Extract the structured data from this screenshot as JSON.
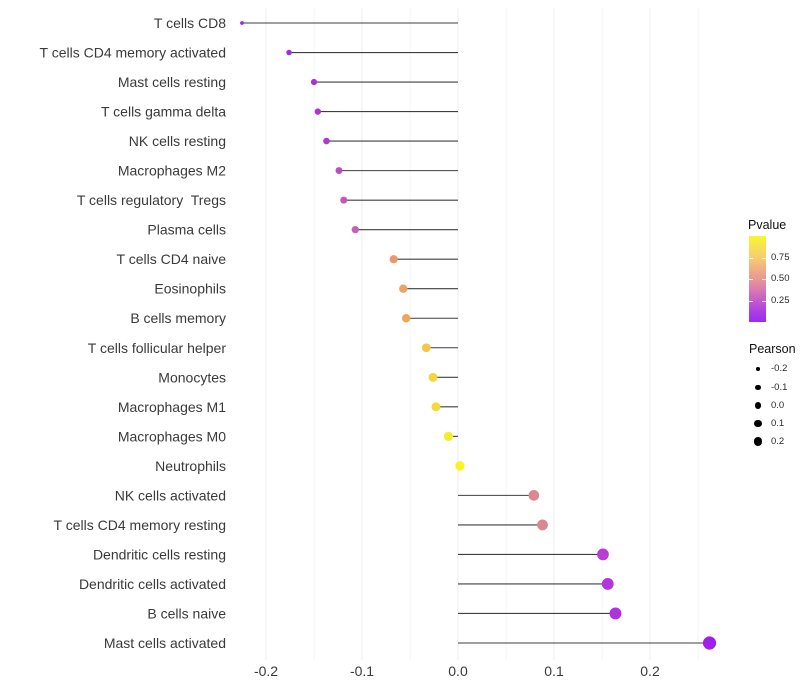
{
  "chart_data": {
    "type": "scatter",
    "subtype": "lollipop",
    "title": "",
    "xlabel": "",
    "ylabel": "",
    "x_axis": {
      "tick_values": [
        -0.2,
        -0.1,
        0.0,
        0.1,
        0.2
      ],
      "tick_labels": [
        "-0.2",
        "-0.1",
        "0.0",
        "0.1",
        "0.2"
      ],
      "minor_grid_values": [
        -0.15,
        -0.05,
        0.05,
        0.15,
        0.25
      ],
      "xlim": [
        -0.25,
        0.287
      ],
      "grid": "vertical major and minor, no horizontal"
    },
    "rows": [
      {
        "label": "T cells CD8",
        "pearson": -0.225,
        "pvalue": 0.05,
        "color": "#9729f0"
      },
      {
        "label": "T cells CD4 memory activated",
        "pearson": -0.176,
        "pvalue": 0.1,
        "color": "#a42ae1"
      },
      {
        "label": "Mast cells resting",
        "pearson": -0.15,
        "pvalue": 0.13,
        "color": "#aa30d9"
      },
      {
        "label": "T cells gamma delta",
        "pearson": -0.146,
        "pvalue": 0.14,
        "color": "#ac33d4"
      },
      {
        "label": "NK cells resting",
        "pearson": -0.137,
        "pvalue": 0.17,
        "color": "#b23ac9"
      },
      {
        "label": "Macrophages M2",
        "pearson": -0.124,
        "pvalue": 0.22,
        "color": "#bf4cc3"
      },
      {
        "label": "T cells regulatory  Tregs",
        "pearson": -0.119,
        "pvalue": 0.25,
        "color": "#c555c0"
      },
      {
        "label": "Plasma cells",
        "pearson": -0.107,
        "pvalue": 0.27,
        "color": "#c85fbb"
      },
      {
        "label": "T cells CD4 naive",
        "pearson": -0.067,
        "pvalue": 0.55,
        "color": "#e9976f"
      },
      {
        "label": "Eosinophils",
        "pearson": -0.057,
        "pvalue": 0.6,
        "color": "#eda25f"
      },
      {
        "label": "B cells memory",
        "pearson": -0.054,
        "pvalue": 0.62,
        "color": "#eea65b"
      },
      {
        "label": "T cells follicular helper",
        "pearson": -0.033,
        "pvalue": 0.74,
        "color": "#f3c748"
      },
      {
        "label": "Monocytes",
        "pearson": -0.026,
        "pvalue": 0.78,
        "color": "#f5d43c"
      },
      {
        "label": "Macrophages M1",
        "pearson": -0.023,
        "pvalue": 0.8,
        "color": "#f6d839"
      },
      {
        "label": "Macrophages M0",
        "pearson": -0.01,
        "pvalue": 0.9,
        "color": "#f8eb2b"
      },
      {
        "label": "Neutrophils",
        "pearson": 0.002,
        "pvalue": 0.95,
        "color": "#fbf31f"
      },
      {
        "label": "NK cells activated",
        "pearson": 0.079,
        "pvalue": 0.46,
        "color": "#dd8793"
      },
      {
        "label": "T cells CD4 memory resting",
        "pearson": 0.088,
        "pvalue": 0.46,
        "color": "#dc8694"
      },
      {
        "label": "Dendritic cells resting",
        "pearson": 0.151,
        "pvalue": 0.18,
        "color": "#b93cd5"
      },
      {
        "label": "Dendritic cells activated",
        "pearson": 0.156,
        "pvalue": 0.15,
        "color": "#b436da"
      },
      {
        "label": "B cells naive",
        "pearson": 0.164,
        "pvalue": 0.13,
        "color": "#b032de"
      },
      {
        "label": "Mast cells activated",
        "pearson": 0.262,
        "pvalue": 0.03,
        "color": "#9f1fef"
      }
    ]
  },
  "legend": {
    "pvalue": {
      "title": "Pvalue",
      "ticks": [
        "0.75",
        "0.50",
        "0.25"
      ],
      "tick_values": [
        0.75,
        0.5,
        0.25
      ],
      "range": [
        0,
        1
      ],
      "gradient_top_to_bottom": [
        "#f8f72b",
        "#f7e056",
        "#f6cd6e",
        "#f0b184",
        "#e79894",
        "#da7ab2",
        "#c45bc9",
        "#ad3fe3",
        "#9a2bf2"
      ]
    },
    "pearson": {
      "title": "Pearson",
      "entries": [
        {
          "label": "-0.2",
          "size": 3.7
        },
        {
          "label": "-0.1",
          "size": 5.3
        },
        {
          "label": "0.0",
          "size": 6.7
        },
        {
          "label": "0.1",
          "size": 7.7
        },
        {
          "label": "0.2",
          "size": 8.7
        }
      ]
    }
  },
  "colors": {
    "background": "#ffffff",
    "segment": "#3f3f3f",
    "grid_major": "#ececec",
    "grid_minor": "#f5f5f5",
    "axis_text": "#3a3a3a"
  }
}
